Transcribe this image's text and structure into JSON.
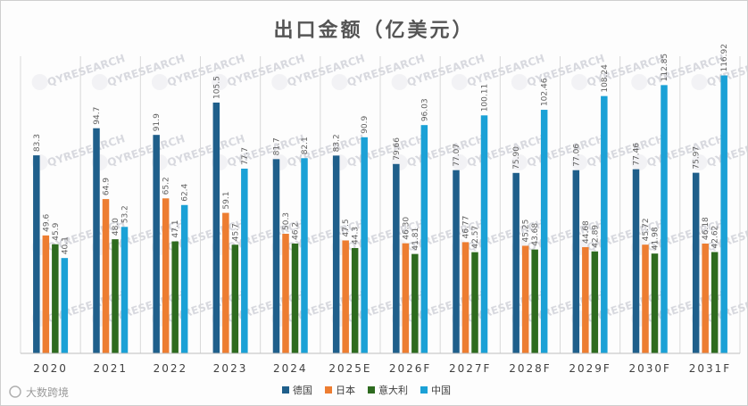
{
  "chart_data": {
    "type": "bar",
    "title": "出口金额（亿美元）",
    "categories": [
      "2020",
      "2021",
      "2022",
      "2023",
      "2024",
      "2025E",
      "2026F",
      "2027F",
      "2028F",
      "2029F",
      "2030F",
      "2031F"
    ],
    "series": [
      {
        "name": "德国",
        "color": "#1f5f8b",
        "values": [
          83.3,
          94.7,
          91.9,
          105.5,
          81.7,
          83.2,
          79.66,
          77.07,
          75.9,
          77.06,
          77.46,
          75.97
        ],
        "labels": [
          "83.3",
          "94.7",
          "91.9",
          "105.5",
          "81.7",
          "83.2",
          "79.66",
          "77.07",
          "75.90",
          "77.06",
          "77.46",
          "75.97"
        ]
      },
      {
        "name": "日本",
        "color": "#ed7d31",
        "values": [
          49.6,
          64.9,
          65.2,
          59.1,
          50.3,
          47.5,
          46.3,
          46.77,
          45.25,
          44.68,
          45.72,
          46.18
        ],
        "labels": [
          "49.6",
          "64.9",
          "65.2",
          "59.1",
          "50.3",
          "47.5",
          "46.30",
          "46.77",
          "45.25",
          "44.68",
          "45.72",
          "46.18"
        ]
      },
      {
        "name": "意大利",
        "color": "#2e6b1f",
        "values": [
          45.9,
          48.0,
          47.1,
          45.7,
          46.2,
          44.3,
          41.81,
          42.57,
          43.68,
          42.89,
          41.98,
          42.62
        ],
        "labels": [
          "45.9",
          "48.0",
          "47.1",
          "45.7",
          "46.2",
          "44.3",
          "41.81",
          "42.57",
          "43.68",
          "42.89",
          "41.98",
          "42.62"
        ]
      },
      {
        "name": "中国",
        "color": "#1ba1d6",
        "values": [
          40.1,
          53.2,
          62.4,
          77.7,
          82.1,
          90.9,
          96.03,
          100.11,
          102.46,
          108.24,
          112.85,
          116.92
        ],
        "labels": [
          "40.1",
          "53.2",
          "62.4",
          "77.7",
          "82.1",
          "90.9",
          "96.03",
          "100.11",
          "102.46",
          "108.24",
          "112.85",
          "116.92"
        ]
      }
    ],
    "ylim": [
      0,
      125
    ],
    "grid": false,
    "legend_position": "bottom-center"
  },
  "watermark": "QYRESEARCH",
  "footer": "大数跨境"
}
